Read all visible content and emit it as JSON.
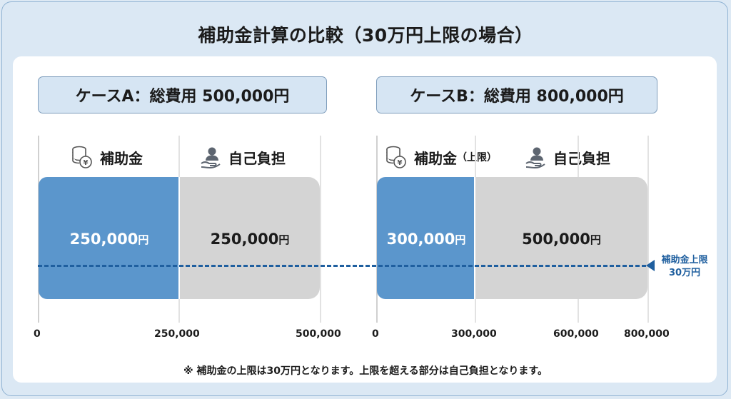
{
  "title": "補助金計算の比較（30万円上限の場合）",
  "case_a": {
    "heading": "ケースA：総費用 500,000円",
    "subsidy_label": "補助金",
    "self_label": "自己負担",
    "subsidy_amount": "250,000",
    "self_amount": "250,000",
    "yen_suffix": "円",
    "ticks": [
      "0",
      "250,000",
      "500,000"
    ]
  },
  "case_b": {
    "heading": "ケースB：総費用 800,000円",
    "subsidy_label": "補助金",
    "subsidy_note": "（上限）",
    "self_label": "自己負担",
    "subsidy_amount": "300,000",
    "self_amount": "500,000",
    "yen_suffix": "円",
    "ticks": [
      "0",
      "300,000",
      "600,000",
      "800,000"
    ]
  },
  "cap": {
    "line1": "補助金上限",
    "line2": "30万円",
    "color": "#1f5f9f"
  },
  "colors": {
    "subsidy": "#5b96cc",
    "self": "#d4d4d4"
  },
  "icons": {
    "subsidy": "coin-stack-yen-icon",
    "self": "person-hand-icon"
  },
  "footnote": "※ 補助金の上限は30万円となります。上限を超える部分は自己負担となります。"
}
